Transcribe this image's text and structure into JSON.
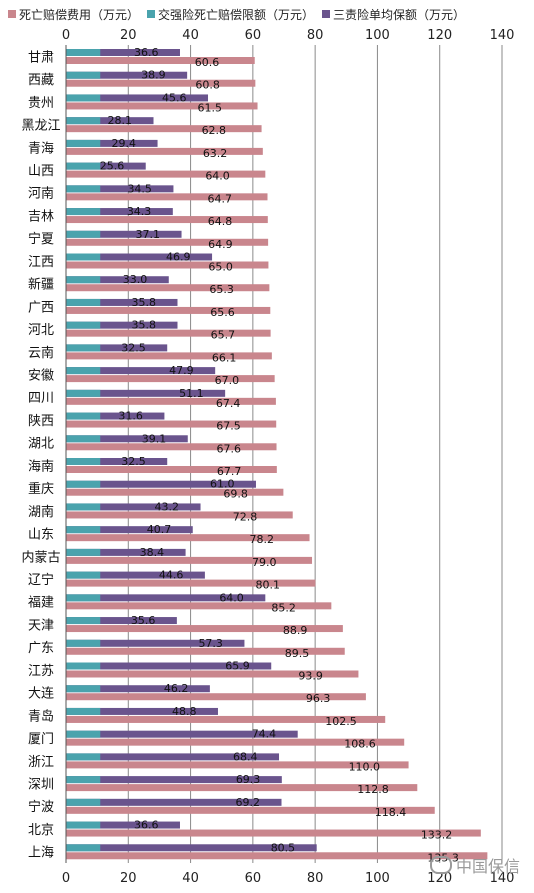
{
  "chart_data": {
    "type": "bar",
    "orientation": "horizontal",
    "xlim": [
      0,
      140
    ],
    "x_ticks": [
      "0",
      "20",
      "40",
      "60",
      "80",
      "100",
      "120",
      "140"
    ],
    "grid": true,
    "legend_position": "top",
    "categories": [
      "甘肃",
      "西藏",
      "贵州",
      "黑龙江",
      "青海",
      "山西",
      "河南",
      "吉林",
      "宁夏",
      "江西",
      "新疆",
      "广西",
      "河北",
      "云南",
      "安徽",
      "四川",
      "陕西",
      "湖北",
      "海南",
      "重庆",
      "湖南",
      "山东",
      "内蒙古",
      "辽宁",
      "福建",
      "天津",
      "广东",
      "江苏",
      "大连",
      "青岛",
      "厦门",
      "浙江",
      "深圳",
      "宁波",
      "北京",
      "上海"
    ],
    "series": [
      {
        "name": "死亡赔偿费用（万元）",
        "color": "#c9868d",
        "values": [
          60.6,
          60.8,
          61.5,
          62.8,
          63.2,
          64.0,
          64.7,
          64.8,
          64.9,
          65.0,
          65.3,
          65.6,
          65.7,
          66.1,
          67.0,
          67.4,
          67.5,
          67.6,
          67.7,
          69.8,
          72.8,
          78.2,
          79.0,
          80.1,
          85.2,
          88.9,
          89.5,
          93.9,
          96.3,
          102.5,
          108.6,
          110.0,
          112.8,
          118.4,
          133.2,
          135.3
        ]
      },
      {
        "name": "交强险死亡赔偿限额（万元）",
        "color": "#4aa3ad",
        "values": [
          11,
          11,
          11,
          11,
          11,
          11,
          11,
          11,
          11,
          11,
          11,
          11,
          11,
          11,
          11,
          11,
          11,
          11,
          11,
          11,
          11,
          11,
          11,
          11,
          11,
          11,
          11,
          11,
          11,
          11,
          11,
          11,
          11,
          11,
          11,
          11
        ]
      },
      {
        "name": "三责险单均保额（万元）",
        "color": "#6a548d",
        "values": [
          36.6,
          38.9,
          45.6,
          28.1,
          29.4,
          25.6,
          34.5,
          34.3,
          37.1,
          46.9,
          33.0,
          35.8,
          35.8,
          32.5,
          47.9,
          51.1,
          31.6,
          39.1,
          32.5,
          61.0,
          43.2,
          40.7,
          38.4,
          44.6,
          64.0,
          35.6,
          57.3,
          65.9,
          46.2,
          48.8,
          74.4,
          68.4,
          69.3,
          69.2,
          36.6,
          80.5
        ]
      }
    ],
    "data_labels": {
      "third_party": [
        "36.6",
        "38.9",
        "45.6",
        "28.1",
        "29.4",
        "25.6",
        "34.5",
        "34.3",
        "37.1",
        "46.9",
        "33.0",
        "35.8",
        "35.8",
        "32.5",
        "47.9",
        "51.1",
        "31.6",
        "39.1",
        "32.5",
        "61.0",
        "43.2",
        "40.7",
        "38.4",
        "44.6",
        "64.0",
        "35.6",
        "57.3",
        "65.9",
        "46.2",
        "48.8",
        "74.4",
        "68.4",
        "69.3",
        "69.2",
        "36.6",
        "80.5"
      ],
      "death": [
        "60.6",
        "60.8",
        "61.5",
        "62.8",
        "63.2",
        "64.0",
        "64.7",
        "64.8",
        "64.9",
        "65.0",
        "65.3",
        "65.6",
        "65.7",
        "66.1",
        "67.0",
        "67.4",
        "67.5",
        "67.6",
        "67.7",
        "69.8",
        "72.8",
        "78.2",
        "79.0",
        "80.1",
        "85.2",
        "88.9",
        "89.5",
        "93.9",
        "96.3",
        "102.5",
        "108.6",
        "110.0",
        "112.8",
        "118.4",
        "133.2",
        "135.3"
      ]
    }
  },
  "watermark": {
    "text": "中国保信",
    "icon": "wechat-logo-icon"
  }
}
